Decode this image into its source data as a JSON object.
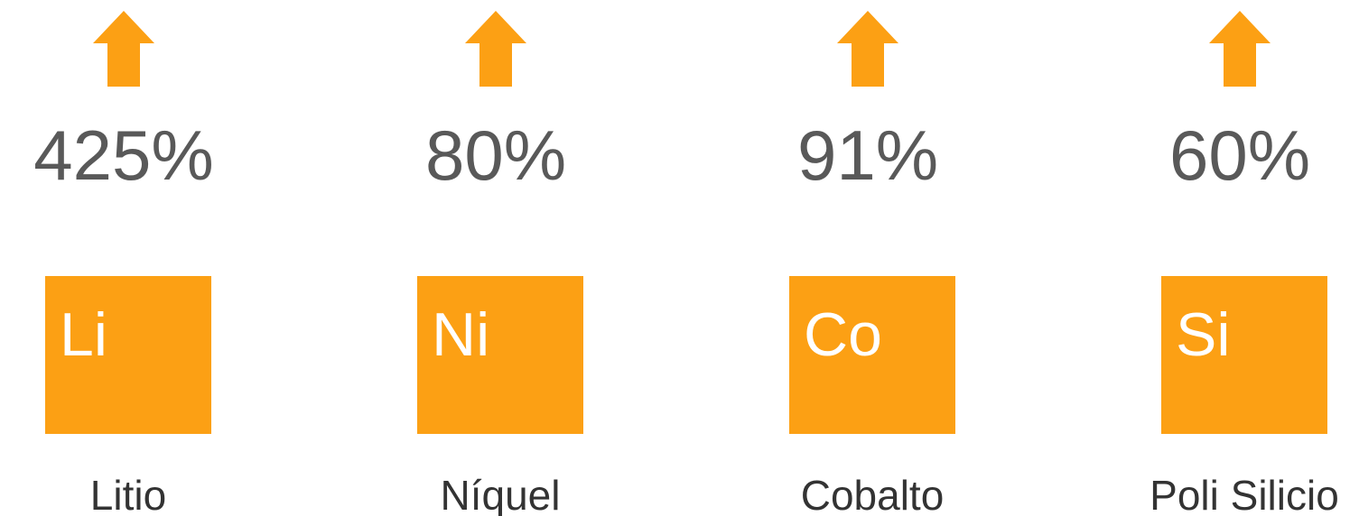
{
  "items": [
    {
      "change": "425%",
      "symbol": "Li",
      "name": "Litio"
    },
    {
      "change": "80%",
      "symbol": "Ni",
      "name": "Níquel"
    },
    {
      "change": "91%",
      "symbol": "Co",
      "name": "Cobalto"
    },
    {
      "change": "60%",
      "symbol": "Si",
      "name": "Poli Silicio"
    }
  ]
}
